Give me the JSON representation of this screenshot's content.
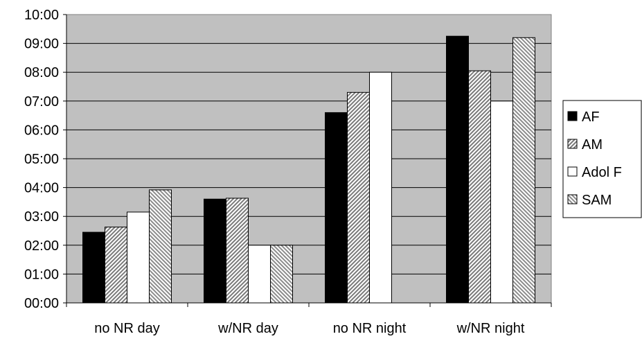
{
  "chart_data": {
    "type": "bar",
    "title": "",
    "xlabel": "",
    "ylabel": "",
    "categories": [
      "no NR day",
      "w/NR day",
      "no NR night",
      "w/NR night"
    ],
    "y_ticks": [
      "00:00",
      "01:00",
      "02:00",
      "03:00",
      "04:00",
      "05:00",
      "06:00",
      "07:00",
      "08:00",
      "09:00",
      "10:00"
    ],
    "ylim": [
      0,
      10
    ],
    "y_unit": "hours",
    "grid": true,
    "legend_position": "right",
    "plot_background": "#c0c0c0",
    "series": [
      {
        "name": "AF",
        "fill": "solid",
        "color": "#000000",
        "values": [
          2.45,
          3.6,
          6.6,
          9.25
        ]
      },
      {
        "name": "AM",
        "fill": "hatch",
        "color": "#8a8a8a",
        "values": [
          2.63,
          3.63,
          7.3,
          8.05
        ]
      },
      {
        "name": "Adol F",
        "fill": "solid",
        "color": "#ffffff",
        "values": [
          3.15,
          2.0,
          8.0,
          7.0
        ]
      },
      {
        "name": "SAM",
        "fill": "hatch",
        "color": "#a8a8a8",
        "values": [
          3.92,
          2.0,
          null,
          9.2
        ]
      }
    ]
  }
}
